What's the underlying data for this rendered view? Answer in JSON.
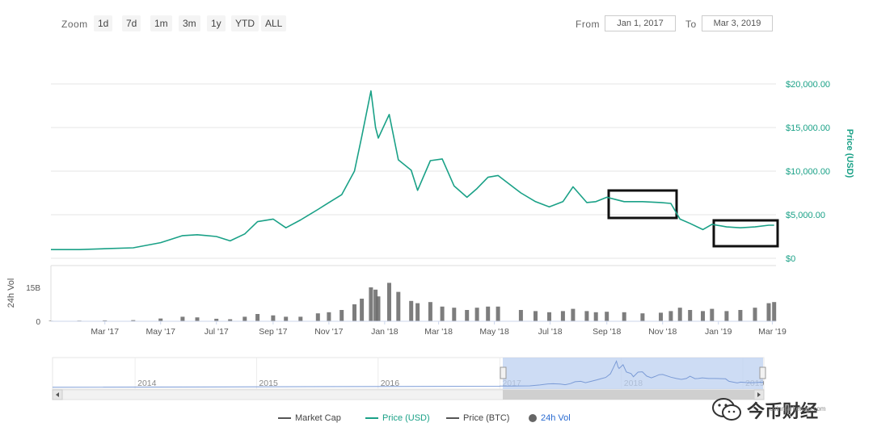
{
  "toolbar": {
    "zoom_label": "Zoom",
    "zoom_buttons": [
      "1d",
      "7d",
      "1m",
      "3m",
      "1y",
      "YTD",
      "ALL"
    ],
    "from_label": "From",
    "from_value": "Jan 1, 2017",
    "to_label": "To",
    "to_value": "Mar 3, 2019"
  },
  "chart_data": {
    "type": "line",
    "x": [
      "2017-01-01",
      "2017-02-01",
      "2017-03-01",
      "2017-04-01",
      "2017-05-01",
      "2017-05-25",
      "2017-06-10",
      "2017-07-01",
      "2017-07-16",
      "2017-08-01",
      "2017-08-15",
      "2017-09-01",
      "2017-09-15",
      "2017-10-01",
      "2017-10-20",
      "2017-11-01",
      "2017-11-15",
      "2017-11-29",
      "2017-12-07",
      "2017-12-17",
      "2017-12-22",
      "2017-12-25",
      "2018-01-06",
      "2018-01-16",
      "2018-01-30",
      "2018-02-06",
      "2018-02-20",
      "2018-03-05",
      "2018-03-18",
      "2018-04-01",
      "2018-04-12",
      "2018-04-24",
      "2018-05-05",
      "2018-05-30",
      "2018-06-15",
      "2018-06-30",
      "2018-07-15",
      "2018-07-26",
      "2018-08-10",
      "2018-08-20",
      "2018-09-01",
      "2018-09-20",
      "2018-10-10",
      "2018-10-30",
      "2018-11-10",
      "2018-11-20",
      "2018-12-01",
      "2018-12-15",
      "2018-12-25",
      "2019-01-10",
      "2019-01-25",
      "2019-02-10",
      "2019-02-25",
      "2019-03-03"
    ],
    "y": [
      1000,
      1000,
      1100,
      1200,
      1800,
      2600,
      2700,
      2500,
      2000,
      2800,
      4200,
      4500,
      3500,
      4400,
      5600,
      6400,
      7300,
      10000,
      14000,
      19200,
      15000,
      13800,
      16500,
      11300,
      10100,
      7800,
      11200,
      11400,
      8300,
      7000,
      8000,
      9300,
      9500,
      7500,
      6500,
      5900,
      6500,
      8200,
      6400,
      6500,
      7000,
      6500,
      6500,
      6400,
      6300,
      4500,
      4000,
      3300,
      3900,
      3600,
      3500,
      3600,
      3800,
      3800
    ],
    "volume": [
      0.2,
      0.3,
      0.4,
      0.5,
      1.2,
      2.0,
      1.7,
      1.1,
      0.9,
      2.0,
      3.2,
      2.6,
      2.0,
      2.0,
      3.5,
      4.0,
      5.0,
      7.5,
      10.0,
      15.0,
      14.0,
      11.0,
      17.0,
      13.0,
      9.0,
      8.0,
      8.5,
      6.5,
      6.0,
      5.0,
      6.0,
      6.5,
      6.5,
      5.0,
      4.5,
      4.0,
      4.5,
      5.5,
      4.5,
      4.0,
      4.2,
      4.0,
      3.5,
      3.8,
      4.5,
      6.0,
      5.0,
      4.5,
      5.5,
      4.5,
      5.0,
      6.0,
      8.0,
      8.5
    ],
    "x_ticks": [
      "Mar '17",
      "May '17",
      "Jul '17",
      "Sep '17",
      "Nov '17",
      "Jan '18",
      "Mar '18",
      "May '18",
      "Jul '18",
      "Sep '18",
      "Nov '18",
      "Jan '19",
      "Mar '19"
    ],
    "y_ticks": [
      "$0",
      "$5,000.00",
      "$10,000.00",
      "$15,000.00",
      "$20,000.00"
    ],
    "y_tick_values": [
      0,
      5000,
      10000,
      15000,
      20000
    ],
    "ylabel": "Price (USD)",
    "ylim": [
      0,
      20000
    ],
    "volume_label": "24h Vol",
    "volume_ticks": [
      "0",
      "15B"
    ],
    "volume_ylim": [
      0,
      20
    ],
    "navigator_ticks": [
      "2014",
      "2015",
      "2016",
      "2017",
      "2018",
      "2019"
    ],
    "legend": [
      {
        "label": "Market Cap",
        "color": "#555555",
        "marker": "line"
      },
      {
        "label": "Price (USD)",
        "color": "#1aa187",
        "marker": "line"
      },
      {
        "label": "Price (BTC)",
        "color": "#555555",
        "marker": "line"
      },
      {
        "label": "24h Vol",
        "color": "#666666",
        "marker": "dot"
      }
    ],
    "price_color": "#1aa187",
    "volume_color": "#666666",
    "grid": true
  },
  "watermark": {
    "text": "今币财经",
    "credit": "coinmarketcap.com"
  }
}
